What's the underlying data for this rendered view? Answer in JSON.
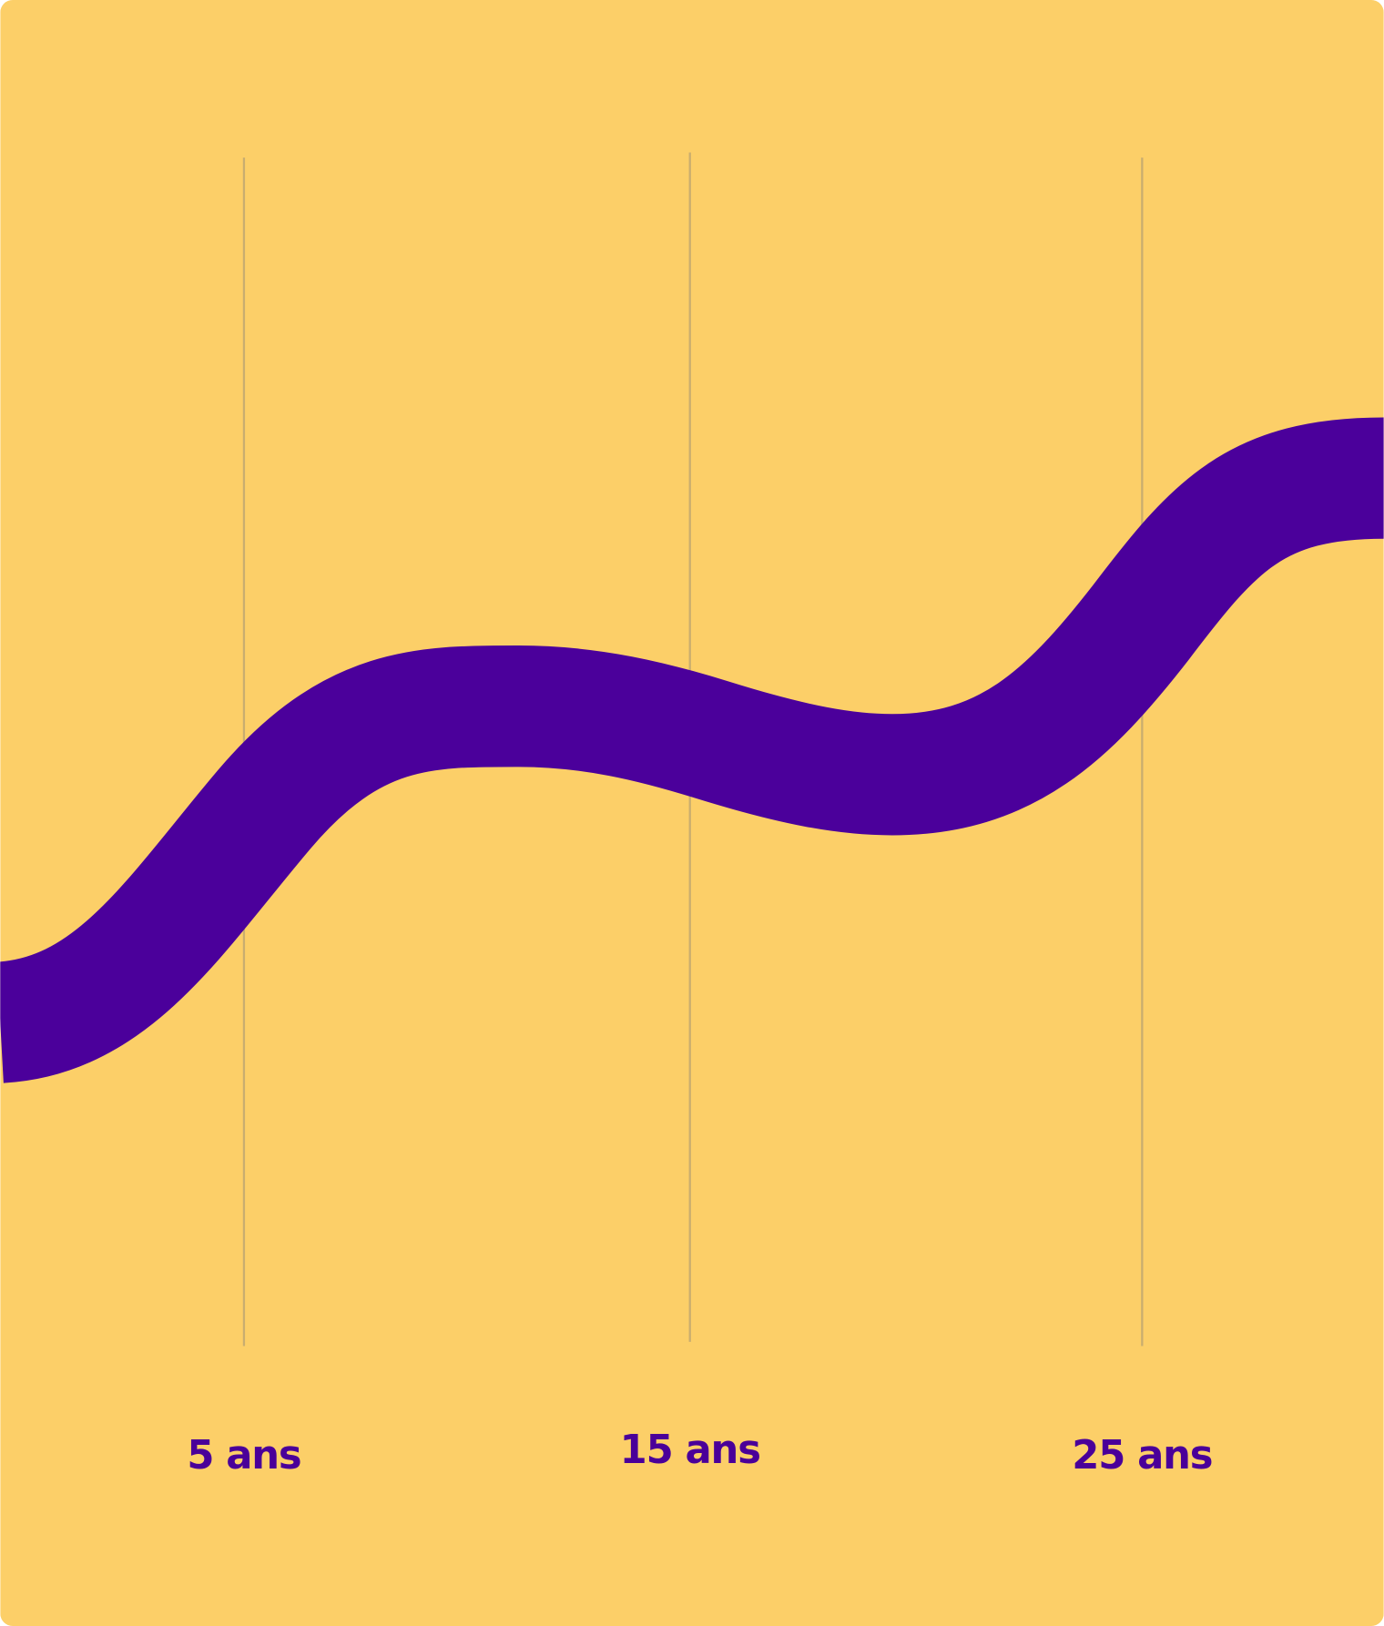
{
  "axis_labels": [
    "5 ans",
    "15 ans",
    "25 ans"
  ]
}
